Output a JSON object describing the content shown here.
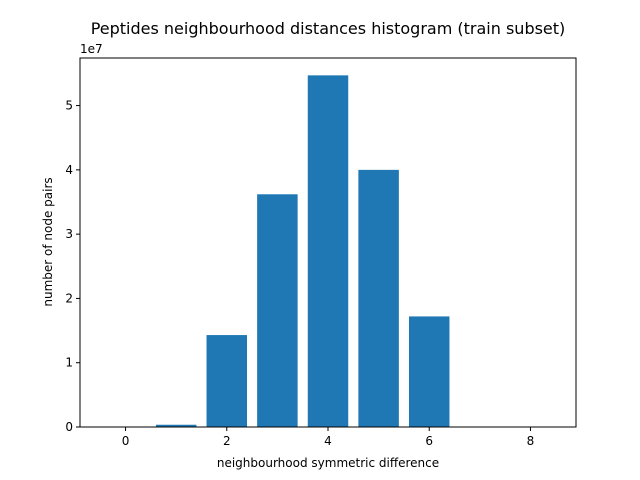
{
  "chart_data": {
    "type": "bar",
    "title": "Peptides neighbourhood distances histogram (train subset)",
    "xlabel": "neighbourhood symmetric difference",
    "ylabel": "number of node pairs",
    "y_offset_label": "1e7",
    "y_scale": 10000000,
    "x": [
      0,
      1,
      2,
      3,
      4,
      5,
      6,
      7,
      8
    ],
    "values": [
      20000,
      350000,
      14300000,
      36200000,
      54700000,
      40000000,
      17200000,
      0,
      0
    ],
    "bar_color": "#1f77b4",
    "xlim": [
      -0.9,
      8.9
    ],
    "ylim": [
      0,
      57400000
    ],
    "xticks": [
      0,
      2,
      4,
      6,
      8
    ],
    "xtick_labels": [
      "0",
      "2",
      "4",
      "6",
      "8"
    ],
    "yticks": [
      0,
      10000000,
      20000000,
      30000000,
      40000000,
      50000000
    ],
    "ytick_labels": [
      "0",
      "1",
      "2",
      "3",
      "4",
      "5"
    ],
    "grid": false,
    "legend": "none"
  }
}
